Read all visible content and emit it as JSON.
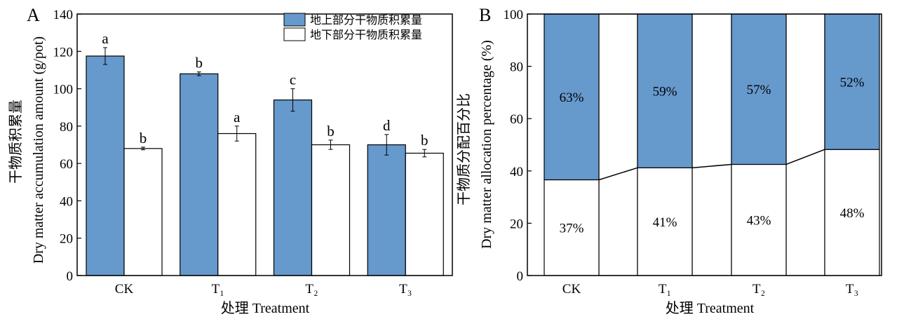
{
  "colors": {
    "above": "#6699cc",
    "below": "#ffffff",
    "stroke": "#000000"
  },
  "chart_data": [
    {
      "panel_label": "A",
      "type": "bar",
      "categories": [
        "CK",
        "T₁",
        "T₂",
        "T₃"
      ],
      "series": [
        {
          "name": "地上部分干物质积累量",
          "values": [
            117.5,
            108,
            94,
            70
          ],
          "errors": [
            4.5,
            1,
            6,
            5.5
          ],
          "labels": [
            "a",
            "b",
            "c",
            "d"
          ]
        },
        {
          "name": "地下部分干物质积累量",
          "values": [
            68,
            76,
            70,
            65.5
          ],
          "errors": [
            0.7,
            4,
            2.5,
            2
          ],
          "labels": [
            "b",
            "a",
            "b",
            "b"
          ]
        }
      ],
      "xlabel": "处理  Treatment",
      "ylabel": "Dry matter accumulation amount (g/pot)",
      "ylabel_cn": "干物质积累量",
      "ylim": [
        0,
        140
      ],
      "yticks": [
        0,
        20,
        40,
        60,
        80,
        100,
        120,
        140
      ],
      "legend": "top-right",
      "grid": false
    },
    {
      "panel_label": "B",
      "type": "bar",
      "stacked": true,
      "percent": true,
      "categories": [
        "CK",
        "T₁",
        "T₂",
        "T₃"
      ],
      "series": [
        {
          "name": "地下部分干物质积累量",
          "values": [
            36.6,
            41.2,
            42.5,
            48.2
          ],
          "labels": [
            "37%",
            "41%",
            "43%",
            "48%"
          ]
        },
        {
          "name": "地上部分干物质积累量",
          "values": [
            63.4,
            58.8,
            57.5,
            51.8
          ],
          "labels": [
            "63%",
            "59%",
            "57%",
            "52%"
          ]
        }
      ],
      "xlabel": "处理  Treatment",
      "ylabel": "Dry matter allocation percentage (%)",
      "ylabel_cn": "干物质分配百分比",
      "ylim": [
        0,
        100
      ],
      "yticks": [
        0,
        20,
        40,
        60,
        80,
        100
      ],
      "grid": false
    }
  ]
}
